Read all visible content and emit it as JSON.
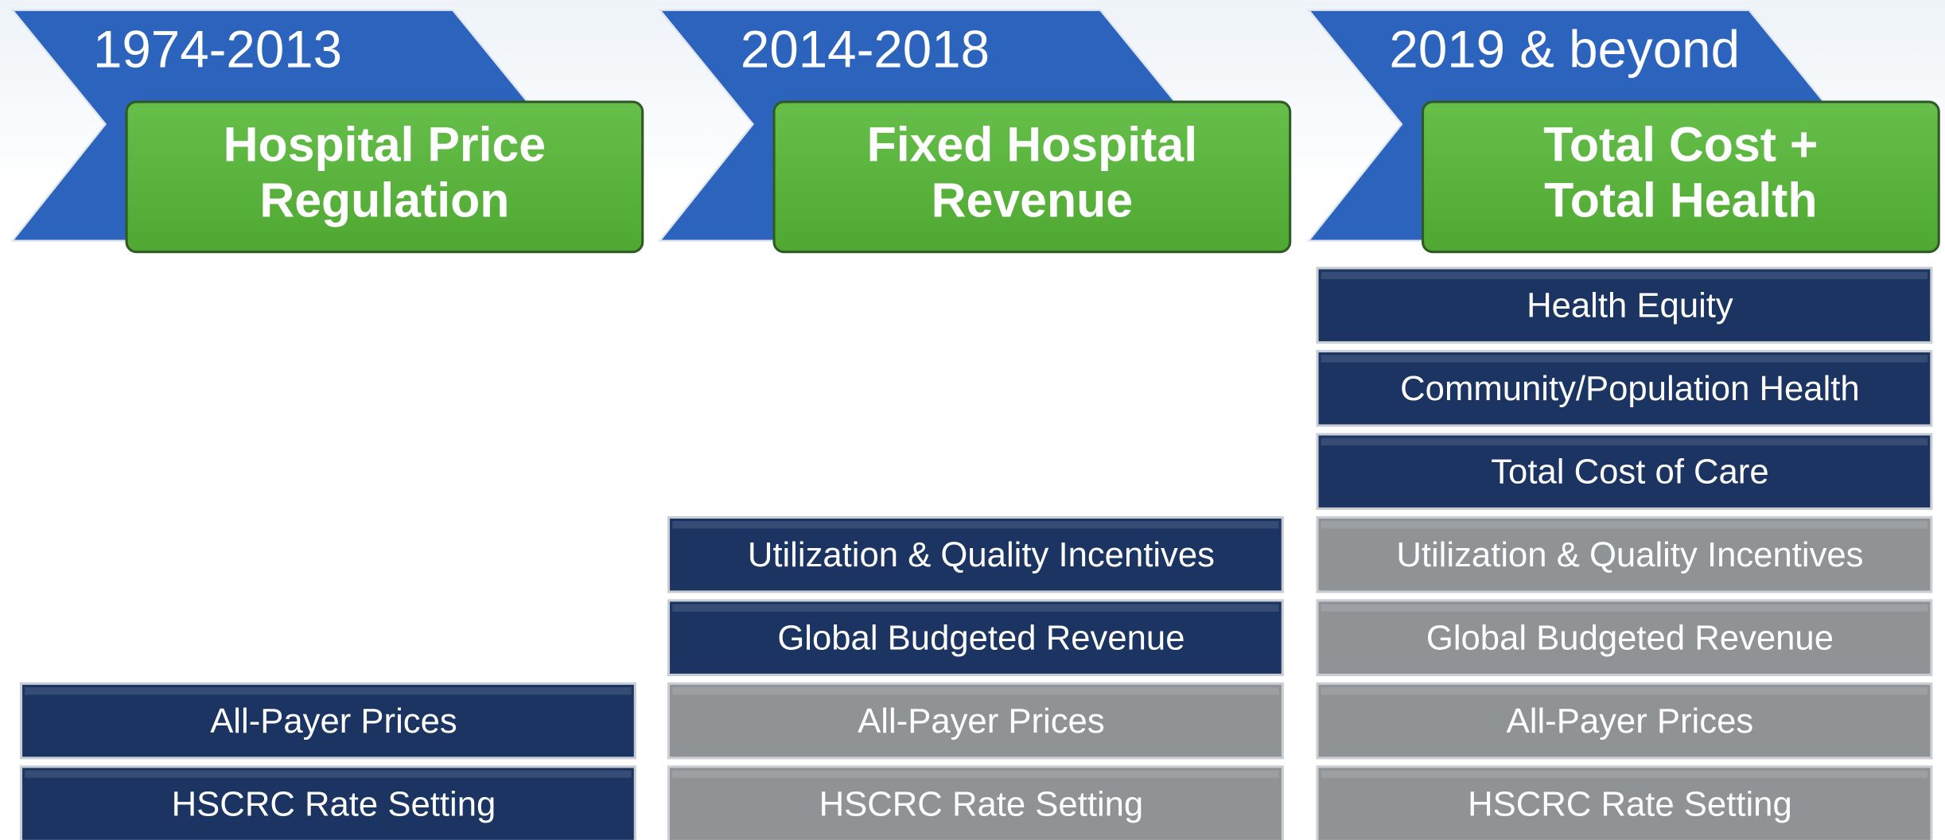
{
  "columns": [
    {
      "period": "1974-2013",
      "title": [
        "Hospital Price",
        "Regulation"
      ],
      "blocks": [
        {
          "label": "All-Payer Prices",
          "color": "#1b3461"
        },
        {
          "label": "HSCRC Rate Setting",
          "color": "#1b3461"
        }
      ]
    },
    {
      "period": "2014-2018",
      "title": [
        "Fixed Hospital",
        "Revenue"
      ],
      "blocks": [
        {
          "label": "Utilization & Quality Incentives",
          "color": "#1b3461"
        },
        {
          "label": "Global Budgeted Revenue",
          "color": "#1b3461"
        },
        {
          "label": "All-Payer Prices",
          "color": "#8f9396"
        },
        {
          "label": "HSCRC Rate Setting",
          "color": "#8f9396"
        }
      ]
    },
    {
      "period": "2019 & beyond",
      "title": [
        "Total Cost +",
        "Total Health"
      ],
      "blocks": [
        {
          "label": "Health Equity",
          "color": "#1b3461"
        },
        {
          "label": "Community/Population Health",
          "color": "#1b3461"
        },
        {
          "label": "Total Cost of Care",
          "color": "#1b3461"
        },
        {
          "label": "Utilization & Quality Incentives",
          "color": "#8f9396"
        },
        {
          "label": "Global Budgeted Revenue",
          "color": "#8f9396"
        },
        {
          "label": "All-Payer Prices",
          "color": "#8f9396"
        },
        {
          "label": "HSCRC Rate Setting",
          "color": "#8f9396"
        }
      ]
    }
  ]
}
